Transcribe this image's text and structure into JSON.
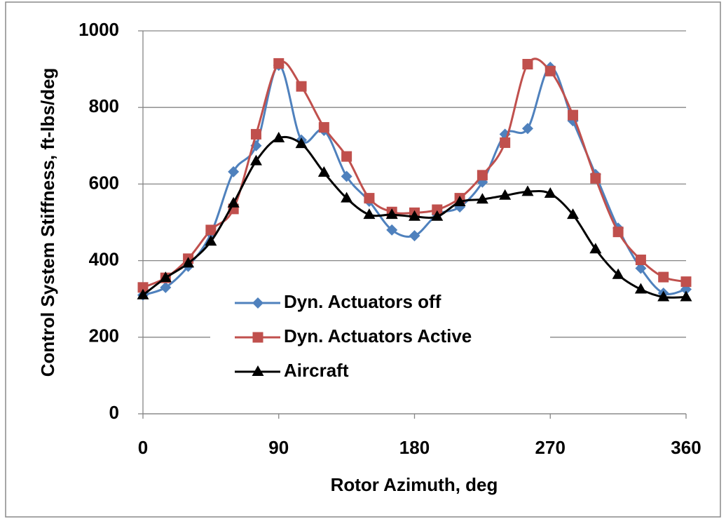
{
  "chart_data": {
    "type": "line",
    "xlabel": "Rotor Azimuth, deg",
    "ylabel": "Control System Stiffness, ft-lbs/deg",
    "x": [
      0,
      15,
      30,
      45,
      60,
      75,
      90,
      105,
      120,
      135,
      150,
      165,
      180,
      195,
      210,
      225,
      240,
      255,
      270,
      285,
      300,
      315,
      330,
      345,
      360
    ],
    "series": [
      {
        "name": "Dyn. Actuators off",
        "color": "#4f81bd",
        "marker": "diamond",
        "values": [
          310,
          330,
          385,
          470,
          632,
          700,
          910,
          715,
          740,
          620,
          555,
          480,
          465,
          520,
          540,
          605,
          730,
          745,
          905,
          765,
          625,
          485,
          380,
          315,
          325
        ]
      },
      {
        "name": "Dyn. Actuators Active",
        "color": "#c0504d",
        "marker": "square",
        "values": [
          330,
          355,
          405,
          480,
          535,
          730,
          915,
          855,
          748,
          672,
          563,
          527,
          525,
          533,
          563,
          623,
          708,
          913,
          895,
          780,
          615,
          475,
          402,
          357,
          345
        ]
      },
      {
        "name": "Aircraft",
        "color": "#000000",
        "marker": "triangle",
        "values": [
          310,
          355,
          393,
          450,
          550,
          660,
          720,
          705,
          630,
          563,
          520,
          520,
          515,
          515,
          553,
          560,
          570,
          580,
          575,
          520,
          430,
          363,
          325,
          305,
          305
        ]
      }
    ],
    "xlim": [
      0,
      360
    ],
    "xticks": [
      0,
      90,
      180,
      270,
      360
    ],
    "ylim": [
      0,
      1000
    ],
    "yticks": [
      0,
      200,
      400,
      600,
      800,
      1000
    ],
    "grid": true,
    "smooth": true
  }
}
